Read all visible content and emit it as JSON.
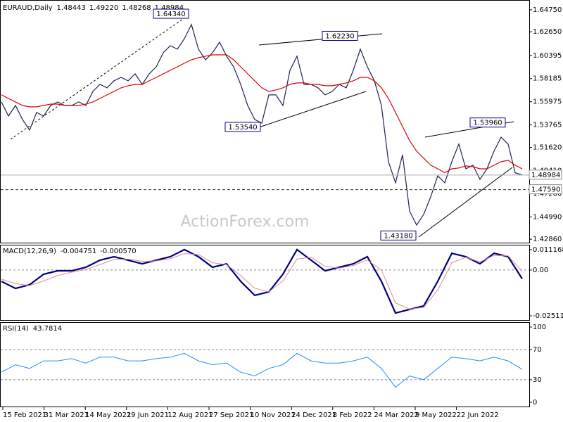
{
  "chart_data": [
    {
      "type": "line",
      "title": "EURAUD,Daily",
      "readout": [
        {
          "value": 1.48443,
          "label": "1.48443"
        },
        {
          "value": 1.4922,
          "label": "1.49220"
        },
        {
          "value": 1.48268,
          "label": "1.48268"
        },
        {
          "value": 1.48984,
          "label": "1.48984"
        }
      ],
      "watermark": "ActionForex.com",
      "ylim": [
        1.4253,
        1.6555
      ],
      "yticks": [
        {
          "value": 1.6475,
          "label": "1.64750"
        },
        {
          "value": 1.6265,
          "label": "1.62650"
        },
        {
          "value": 1.60395,
          "label": "1.60395"
        },
        {
          "value": 1.58185,
          "label": "1.58185"
        },
        {
          "value": 1.55975,
          "label": "1.55975"
        },
        {
          "value": 1.53765,
          "label": "1.53765"
        },
        {
          "value": 1.5162,
          "label": "1.51620"
        },
        {
          "value": 1.4941,
          "label": "1.49410"
        },
        {
          "value": 1.472,
          "label": "1.47200"
        },
        {
          "value": 1.4499,
          "label": "1.44990"
        },
        {
          "value": 1.4286,
          "label": "1.42860"
        }
      ],
      "series": [
        {
          "color": "#1c2452",
          "values": [
            1.5596,
            1.5461,
            1.5562,
            1.5428,
            1.5327,
            1.5495,
            1.5461,
            1.5562,
            1.5596,
            1.5562,
            1.5562,
            1.5596,
            1.5562,
            1.5696,
            1.5763,
            1.573,
            1.5797,
            1.583,
            1.5797,
            1.5864,
            1.5763,
            1.5864,
            1.5931,
            1.6065,
            1.6132,
            1.6099,
            1.6199,
            1.6334,
            1.6099,
            1.5998,
            1.6065,
            1.6166,
            1.6032,
            1.5931,
            1.5763,
            1.5562,
            1.5428,
            1.5394,
            1.5663,
            1.5663,
            1.5562,
            1.5897,
            1.6032,
            1.5763,
            1.5763,
            1.573,
            1.5663,
            1.5696,
            1.5763,
            1.573,
            1.5897,
            1.6099,
            1.5931,
            1.5797,
            1.5562,
            1.5025,
            1.4824,
            1.5092,
            1.4555,
            1.4421,
            1.4522,
            1.469,
            1.4891,
            1.4824,
            1.5025,
            1.5193,
            1.4958,
            1.4992,
            1.4857,
            1.4958,
            1.5126,
            1.526,
            1.5193,
            1.492,
            1.48984
          ]
        },
        {
          "color": "#e00000",
          "values": [
            1.5663,
            1.5629,
            1.5596,
            1.5562,
            1.5549,
            1.5549,
            1.5562,
            1.5575,
            1.5575,
            1.5562,
            1.5562,
            1.5562,
            1.5575,
            1.5596,
            1.5629,
            1.5663,
            1.5696,
            1.573,
            1.575,
            1.5763,
            1.5763,
            1.5797,
            1.583,
            1.5864,
            1.5897,
            1.5931,
            1.5965,
            1.5998,
            1.6018,
            1.6032,
            1.6045,
            1.6045,
            1.6045,
            1.5998,
            1.5931,
            1.5864,
            1.5797,
            1.573,
            1.5696,
            1.571,
            1.573,
            1.5763,
            1.5777,
            1.5777,
            1.5763,
            1.5763,
            1.575,
            1.575,
            1.5763,
            1.5777,
            1.5797,
            1.583,
            1.583,
            1.5797,
            1.573,
            1.5629,
            1.5495,
            1.5361,
            1.5226,
            1.5126,
            1.5059,
            1.4992,
            1.4958,
            1.492,
            1.4958,
            1.4966,
            1.4985,
            1.4978,
            1.4958,
            1.4958,
            1.4992,
            1.5025,
            1.5039,
            1.4992,
            1.4958
          ]
        }
      ],
      "annotations": [
        {
          "value": 1.6434,
          "label": "1.64340"
        },
        {
          "value": 1.6223,
          "label": "1.62230"
        },
        {
          "value": 1.5354,
          "label": "1.53540"
        },
        {
          "value": 1.5396,
          "label": "1.53960"
        },
        {
          "value": 1.4318,
          "label": "1.43180"
        }
      ],
      "levels": [
        {
          "value": 1.48984,
          "label": "1.48984"
        },
        {
          "value": 1.4759,
          "label": "1.47590"
        }
      ]
    },
    {
      "type": "line",
      "title": "MACD(12,26,9)",
      "readout": [
        -0.004751,
        {
          "value": -0.00057,
          "label": "-0.000570"
        }
      ],
      "ylim": [
        -0.02743,
        0.01387
      ],
      "yticks": [
        0.011168,
        {
          "value": 0,
          "label": "0.00"
        },
        -0.025117
      ],
      "levels": [
        0
      ],
      "series": [
        {
          "color": "#000080",
          "width": 2.2,
          "values": [
            -0.0062,
            -0.0101,
            -0.0081,
            -0.0023,
            -0.0004,
            -0.0004,
            0.0015,
            0.0054,
            0.0073,
            0.0054,
            0.0034,
            0.0054,
            0.0073,
            0.0112,
            0.0073,
            0.0015,
            0.0034,
            -0.0062,
            -0.0139,
            -0.012,
            -0.0023,
            0.0112,
            0.0054,
            -0.0004,
            0.0015,
            0.0034,
            0.0073,
            -0.0062,
            -0.0236,
            -0.0216,
            -0.0197,
            -0.0062,
            0.0092,
            0.0073,
            0.0034,
            0.0092,
            0.0073,
            -0.0048
          ]
        },
        {
          "color": "#d99090",
          "width": 1,
          "values": [
            -0.005,
            -0.0075,
            -0.0085,
            -0.006,
            -0.003,
            -0.0012,
            0.0002,
            0.003,
            0.0058,
            0.006,
            0.0048,
            0.005,
            0.0062,
            0.009,
            0.0085,
            0.004,
            0.003,
            -0.003,
            -0.01,
            -0.012,
            -0.006,
            0.006,
            0.007,
            0.002,
            0.001,
            0.0025,
            0.0055,
            0,
            -0.018,
            -0.0215,
            -0.0205,
            -0.011,
            0.004,
            0.007,
            0.0045,
            0.008,
            0.0078,
            -0.0006
          ]
        }
      ]
    },
    {
      "type": "line",
      "title": "RSI(14)",
      "readout": [
        43.7814
      ],
      "ylim": [
        -5.6,
        106.5
      ],
      "yticks": [
        100,
        70,
        30,
        0
      ],
      "levels": [
        70,
        30
      ],
      "series": [
        {
          "color": "#1e90ff",
          "width": 1,
          "values": [
            40,
            50,
            45,
            55,
            55,
            58,
            52,
            60,
            60,
            55,
            55,
            58,
            60,
            65,
            55,
            50,
            52,
            40,
            35,
            45,
            50,
            65,
            55,
            52,
            52,
            55,
            60,
            45,
            20,
            35,
            30,
            45,
            60,
            58,
            55,
            60,
            55,
            43.78
          ]
        }
      ]
    }
  ],
  "time_axis": {
    "labels": [
      "15 Feb 2021",
      "31 Mar 2021",
      "14 May 2021",
      "29 Jun 2021",
      "12 Aug 2021",
      "27 Sep 2021",
      "10 Nov 2021",
      "24 Dec 2021",
      "8 Feb 2022",
      "24 Mar 2022",
      "9 May 2022",
      "22 Jun 2022"
    ]
  }
}
